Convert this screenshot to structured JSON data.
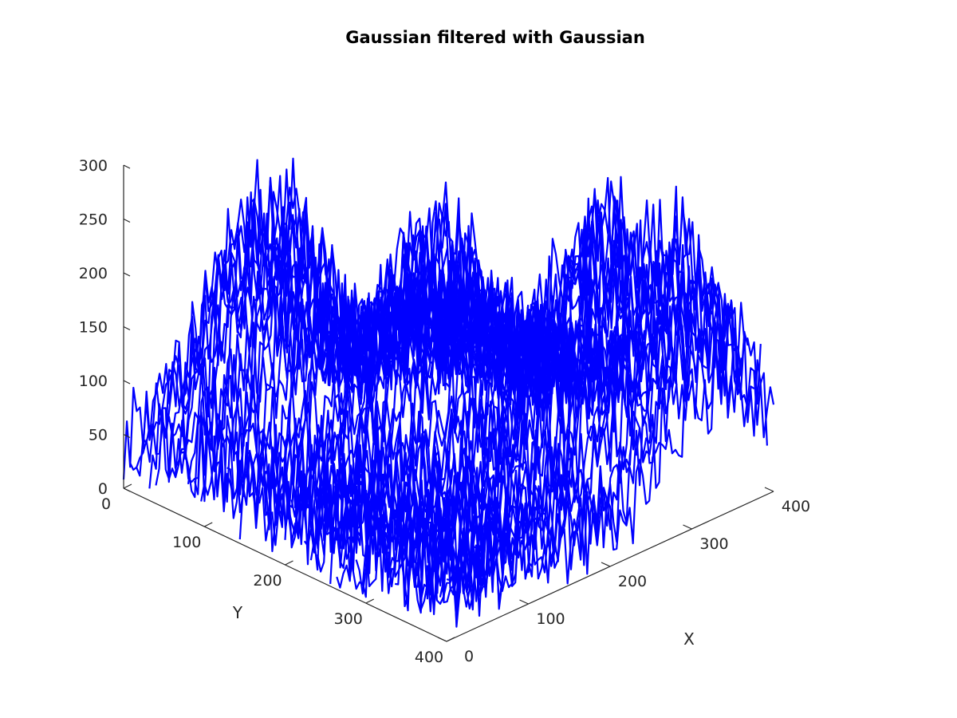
{
  "chart_data": {
    "type": "line3d",
    "title": "Gaussian filtered with Gaussian",
    "xlabel": "X",
    "ylabel": "Y",
    "zlabel": "",
    "xlim": [
      0,
      400
    ],
    "ylim": [
      0,
      400
    ],
    "zlim": [
      0,
      300
    ],
    "xticks": [
      "0",
      "100",
      "200",
      "300",
      "400"
    ],
    "yticks": [
      "0",
      "100",
      "200",
      "300",
      "400"
    ],
    "zticks": [
      "0",
      "50",
      "100",
      "150",
      "200",
      "250",
      "300"
    ],
    "series": [
      {
        "color": "#0000ff",
        "line_count": 400,
        "points_per_line": 400,
        "baseline_z_min": 0,
        "baseline_z_max": 110,
        "peak_z": 290,
        "peak_regions": [
          {
            "x": 225,
            "y": 160,
            "z": 250
          },
          {
            "x": 130,
            "y": 55,
            "z": 270
          },
          {
            "x": 290,
            "y": 300,
            "z": 290
          },
          {
            "x": 330,
            "y": 340,
            "z": 270
          }
        ]
      }
    ],
    "grid": false,
    "legend": "none"
  }
}
